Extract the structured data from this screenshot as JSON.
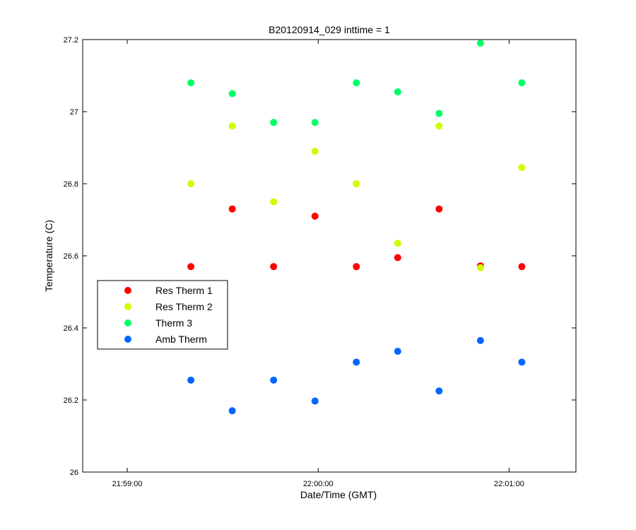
{
  "chart_data": {
    "type": "scatter",
    "title": "B20120914_029 inttime = 1",
    "xlabel": "Date/Time (GMT)",
    "ylabel": "Temperature (C)",
    "x_tick_labels": [
      "21:59:00",
      "22:00:00",
      "22:01:00"
    ],
    "x_tick_values": [
      "21:59:00",
      "22:00:00",
      "22:01:00"
    ],
    "xlim": [
      "21:58:46",
      "22:01:21"
    ],
    "x_scale": "time",
    "y_tick_labels": [
      "26",
      "26.2",
      "26.4",
      "26.6",
      "26.8",
      "27",
      "27.2"
    ],
    "ylim": [
      26,
      27.2
    ],
    "grid": false,
    "legend_position": "left",
    "x": [
      "21:59:20",
      "21:59:33",
      "21:59:46",
      "21:59:59",
      "22:00:12",
      "22:00:25",
      "22:00:38",
      "22:00:51",
      "22:01:04"
    ],
    "series": [
      {
        "name": "Res Therm 1",
        "color": "#ff0000",
        "x": [
          "21:59:20",
          "21:59:33",
          "21:59:46",
          "21:59:59",
          "22:00:12",
          "22:00:25",
          "22:00:38",
          "22:00:51",
          "22:01:04"
        ],
        "values": [
          26.57,
          26.73,
          26.57,
          26.71,
          26.57,
          26.595,
          26.73,
          26.572,
          26.57
        ]
      },
      {
        "name": "Res Therm 2",
        "color": "#ccff00",
        "x": [
          "21:59:20",
          "21:59:33",
          "21:59:46",
          "21:59:59",
          "22:00:12",
          "22:00:25",
          "22:00:38",
          "22:00:51",
          "22:01:04"
        ],
        "values": [
          26.8,
          26.96,
          26.75,
          26.89,
          26.8,
          26.635,
          26.96,
          26.567,
          26.845
        ]
      },
      {
        "name": "Therm 3",
        "color": "#00ff66",
        "x": [
          "21:59:20",
          "21:59:33",
          "21:59:46",
          "21:59:59",
          "22:00:12",
          "22:00:25",
          "22:00:38",
          "22:00:51",
          "22:01:04"
        ],
        "values": [
          27.08,
          27.05,
          26.97,
          26.97,
          27.08,
          27.055,
          26.995,
          27.19,
          27.08
        ]
      },
      {
        "name": "Amb Therm",
        "color": "#0066ff",
        "x": [
          "21:59:20",
          "21:59:33",
          "21:59:46",
          "21:59:59",
          "22:00:12",
          "22:00:25",
          "22:00:38",
          "22:00:51",
          "22:01:04"
        ],
        "values": [
          26.255,
          26.17,
          26.255,
          26.197,
          26.305,
          26.335,
          26.225,
          26.365,
          26.305
        ]
      }
    ]
  }
}
